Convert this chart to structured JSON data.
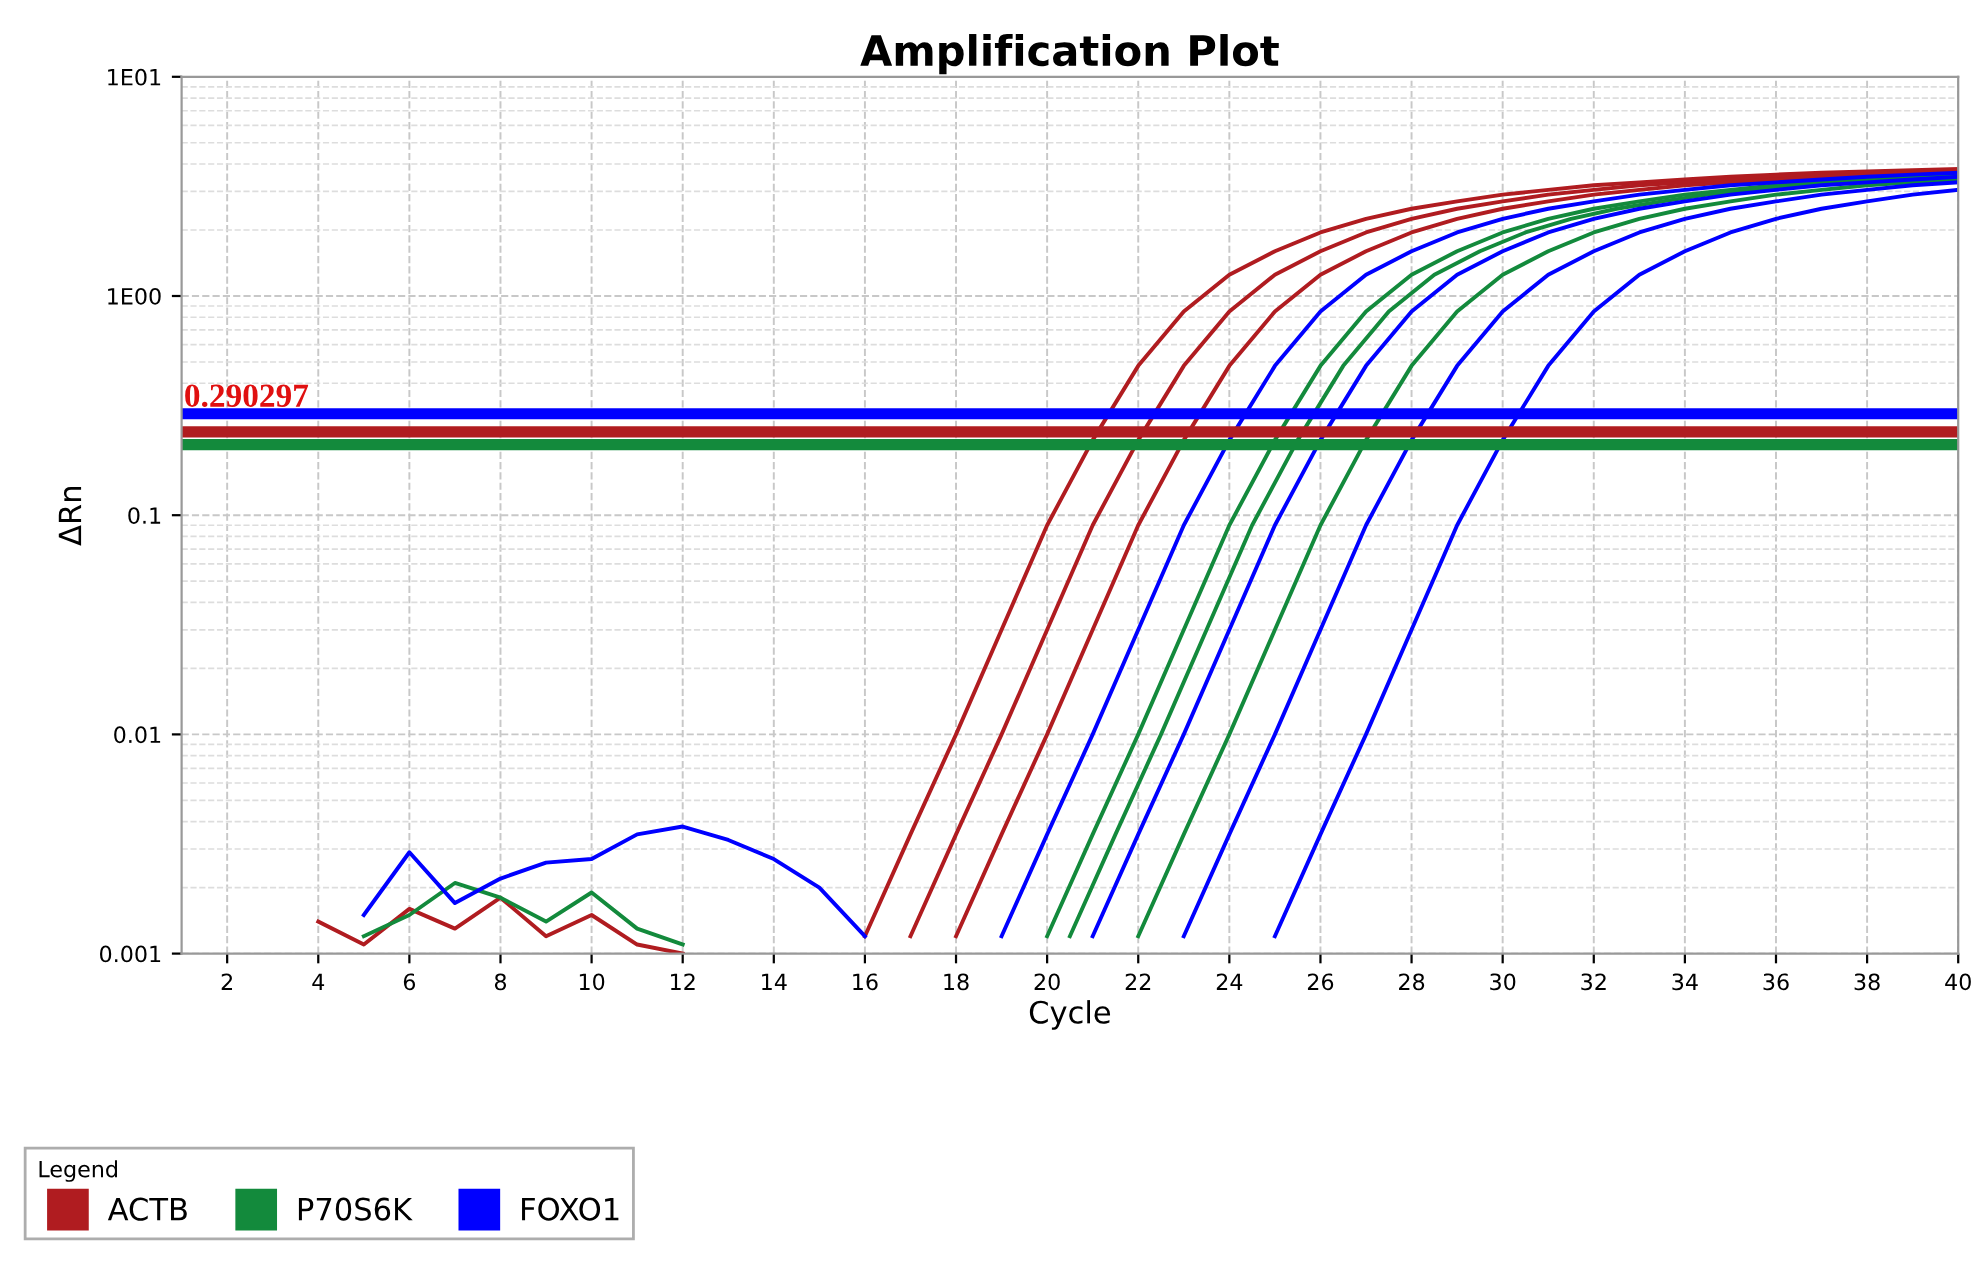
{
  "chart_data": {
    "type": "line",
    "title": "Amplification Plot",
    "xlabel": "Cycle",
    "ylabel": "ΔRn",
    "legend_title": "Legend",
    "log": "y",
    "grid": true,
    "legend": "bottom",
    "marker": "none",
    "line_style": "solid",
    "xlim": [
      1,
      40
    ],
    "xticks": [
      2,
      4,
      6,
      8,
      10,
      12,
      14,
      16,
      18,
      20,
      22,
      24,
      26,
      28,
      30,
      32,
      34,
      36,
      38,
      40
    ],
    "ylim": [
      0.001,
      10
    ],
    "yticks": [
      {
        "value": 10,
        "label": "1E01"
      },
      {
        "value": 1,
        "label": "1E00"
      },
      0.1,
      0.01,
      0.001
    ],
    "ref_lines": [
      {
        "axis": "y",
        "value": 0.290297,
        "label": "0.290297",
        "color": "#0000ff"
      },
      {
        "axis": "y",
        "value": 0.24,
        "label": null,
        "color": "#b01c20"
      },
      {
        "axis": "y",
        "value": 0.21,
        "label": null,
        "color": "#138a3c"
      }
    ],
    "series": [
      {
        "name": "ACTB",
        "color": "#b01c20",
        "x": [
          16,
          17,
          18,
          19,
          20,
          21,
          22,
          23,
          24,
          25,
          26,
          27,
          28,
          29,
          30,
          31,
          32,
          33,
          34,
          35,
          36,
          37,
          38,
          39,
          40
        ],
        "values": [
          0.0012,
          0.0035,
          0.01,
          0.03,
          0.09,
          0.22,
          0.48,
          0.85,
          1.25,
          1.6,
          1.95,
          2.25,
          2.5,
          2.7,
          2.9,
          3.05,
          3.2,
          3.3,
          3.4,
          3.5,
          3.58,
          3.65,
          3.7,
          3.75,
          3.8
        ]
      },
      {
        "color": "#b01c20",
        "x": [
          17,
          18,
          19,
          20,
          21,
          22,
          23,
          24,
          25,
          26,
          27,
          28,
          29,
          30,
          31,
          32,
          33,
          34,
          35,
          36,
          37,
          38,
          39,
          40
        ],
        "values": [
          0.0012,
          0.0035,
          0.01,
          0.03,
          0.09,
          0.22,
          0.48,
          0.85,
          1.25,
          1.6,
          1.95,
          2.25,
          2.5,
          2.7,
          2.9,
          3.05,
          3.2,
          3.3,
          3.4,
          3.5,
          3.58,
          3.65,
          3.7,
          3.75
        ]
      },
      {
        "color": "#b01c20",
        "x": [
          18,
          19,
          20,
          21,
          22,
          23,
          24,
          25,
          26,
          27,
          28,
          29,
          30,
          31,
          32,
          33,
          34,
          35,
          36,
          37,
          38,
          39,
          40
        ],
        "values": [
          0.0012,
          0.0035,
          0.01,
          0.03,
          0.09,
          0.22,
          0.48,
          0.85,
          1.25,
          1.6,
          1.95,
          2.25,
          2.5,
          2.7,
          2.9,
          3.05,
          3.2,
          3.3,
          3.4,
          3.5,
          3.58,
          3.65,
          3.7
        ]
      },
      {
        "color": "#b01c20",
        "x": [
          4,
          5,
          6,
          7,
          8,
          9,
          10,
          11,
          12
        ],
        "values": [
          0.0014,
          0.0011,
          0.0016,
          0.0013,
          0.0018,
          0.0012,
          0.0015,
          0.0011,
          0.001
        ]
      },
      {
        "name": "P70S6K",
        "color": "#138a3c",
        "x": [
          20,
          21,
          22,
          23,
          24,
          25,
          26,
          27,
          28,
          29,
          30,
          31,
          32,
          33,
          34,
          35,
          36,
          37,
          38,
          39,
          40
        ],
        "values": [
          0.0012,
          0.0035,
          0.01,
          0.03,
          0.09,
          0.22,
          0.48,
          0.85,
          1.25,
          1.6,
          1.95,
          2.25,
          2.5,
          2.7,
          2.9,
          3.05,
          3.2,
          3.3,
          3.4,
          3.5,
          3.58
        ]
      },
      {
        "color": "#138a3c",
        "x": [
          20.5,
          21.5,
          22.5,
          23.5,
          24.5,
          25.5,
          26.5,
          27.5,
          28.5,
          29.5,
          30.5,
          31.5,
          32.5,
          33.5,
          34.5,
          35.5,
          36.5,
          37.5,
          38.5,
          39.5
        ],
        "values": [
          0.0012,
          0.0035,
          0.01,
          0.03,
          0.09,
          0.22,
          0.48,
          0.85,
          1.25,
          1.6,
          1.95,
          2.25,
          2.5,
          2.7,
          2.9,
          3.05,
          3.2,
          3.3,
          3.4,
          3.5
        ]
      },
      {
        "color": "#138a3c",
        "x": [
          22,
          23,
          24,
          25,
          26,
          27,
          28,
          29,
          30,
          31,
          32,
          33,
          34,
          35,
          36,
          37,
          38,
          39,
          40
        ],
        "values": [
          0.0012,
          0.0035,
          0.01,
          0.03,
          0.09,
          0.22,
          0.48,
          0.85,
          1.25,
          1.6,
          1.95,
          2.25,
          2.5,
          2.7,
          2.9,
          3.05,
          3.2,
          3.3,
          3.4
        ]
      },
      {
        "color": "#138a3c",
        "x": [
          5,
          6,
          7,
          8,
          9,
          10,
          11,
          12
        ],
        "values": [
          0.0012,
          0.0015,
          0.0021,
          0.0018,
          0.0014,
          0.0019,
          0.0013,
          0.0011
        ]
      },
      {
        "name": "FOXO1",
        "color": "#0000ff",
        "x": [
          19,
          20,
          21,
          22,
          23,
          24,
          25,
          26,
          27,
          28,
          29,
          30,
          31,
          32,
          33,
          34,
          35,
          36,
          37,
          38,
          39,
          40
        ],
        "values": [
          0.0012,
          0.0035,
          0.01,
          0.03,
          0.09,
          0.22,
          0.48,
          0.85,
          1.25,
          1.6,
          1.95,
          2.25,
          2.5,
          2.7,
          2.9,
          3.05,
          3.2,
          3.3,
          3.4,
          3.5,
          3.58,
          3.65
        ]
      },
      {
        "color": "#0000ff",
        "x": [
          21,
          22,
          23,
          24,
          25,
          26,
          27,
          28,
          29,
          30,
          31,
          32,
          33,
          34,
          35,
          36,
          37,
          38,
          39,
          40
        ],
        "values": [
          0.0012,
          0.0035,
          0.01,
          0.03,
          0.09,
          0.22,
          0.48,
          0.85,
          1.25,
          1.6,
          1.95,
          2.25,
          2.5,
          2.7,
          2.9,
          3.05,
          3.2,
          3.3,
          3.4,
          3.5
        ]
      },
      {
        "color": "#0000ff",
        "x": [
          23,
          24,
          25,
          26,
          27,
          28,
          29,
          30,
          31,
          32,
          33,
          34,
          35,
          36,
          37,
          38,
          39,
          40
        ],
        "values": [
          0.0012,
          0.0035,
          0.01,
          0.03,
          0.09,
          0.22,
          0.48,
          0.85,
          1.25,
          1.6,
          1.95,
          2.25,
          2.5,
          2.7,
          2.9,
          3.05,
          3.2,
          3.3
        ]
      },
      {
        "color": "#0000ff",
        "x": [
          25,
          26,
          27,
          28,
          29,
          30,
          31,
          32,
          33,
          34,
          35,
          36,
          37,
          38,
          39,
          40
        ],
        "values": [
          0.0012,
          0.0035,
          0.01,
          0.03,
          0.09,
          0.22,
          0.48,
          0.85,
          1.25,
          1.6,
          1.95,
          2.25,
          2.5,
          2.7,
          2.9,
          3.05
        ]
      },
      {
        "color": "#0000ff",
        "x": [
          5,
          6,
          7,
          8,
          9,
          10,
          11,
          12,
          13,
          14,
          15,
          16
        ],
        "values": [
          0.0015,
          0.0029,
          0.0017,
          0.0022,
          0.0026,
          0.0027,
          0.0035,
          0.0038,
          0.0033,
          0.0027,
          0.002,
          0.0012
        ]
      }
    ]
  }
}
